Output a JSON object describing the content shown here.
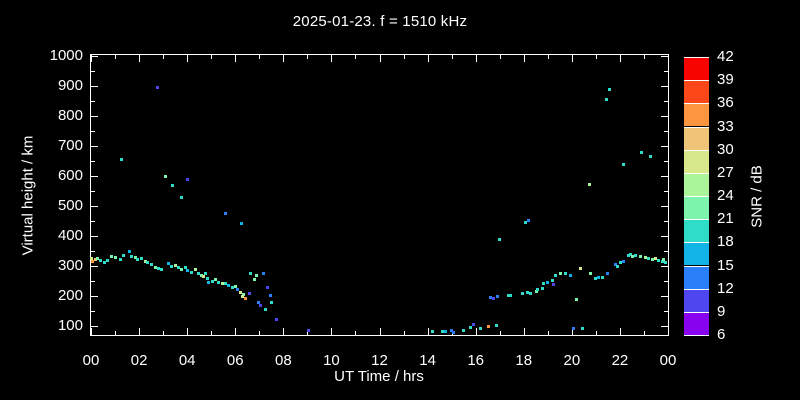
{
  "colors": {
    "background": "#000000",
    "frame": "#ffffff",
    "text": "#ffffff"
  },
  "chart_data": {
    "type": "scatter",
    "title": "2025-01-23. f = 1510 kHz",
    "xlabel": "UT Time / hrs",
    "ylabel": "Virtual height / km",
    "xlim": [
      0,
      24
    ],
    "ylim": [
      70,
      1003
    ],
    "grid": false,
    "x_major_ticks": [
      {
        "label": "00",
        "hour": 0
      },
      {
        "label": "02",
        "hour": 2
      },
      {
        "label": "04",
        "hour": 4
      },
      {
        "label": "06",
        "hour": 6
      },
      {
        "label": "08",
        "hour": 8
      },
      {
        "label": "10",
        "hour": 10
      },
      {
        "label": "12",
        "hour": 12
      },
      {
        "label": "14",
        "hour": 14
      },
      {
        "label": "16",
        "hour": 16
      },
      {
        "label": "18",
        "hour": 18
      },
      {
        "label": "20",
        "hour": 20
      },
      {
        "label": "22",
        "hour": 22
      },
      {
        "label": "00",
        "hour": 24
      }
    ],
    "x_minor_ticks": [
      1,
      3,
      5,
      7,
      9,
      11,
      13,
      15,
      17,
      19,
      21,
      23
    ],
    "y_major_ticks": [
      100,
      200,
      300,
      400,
      500,
      600,
      700,
      800,
      900,
      1000
    ],
    "y_minor_ticks": [
      150,
      250,
      350,
      450,
      550,
      650,
      750,
      850,
      950
    ],
    "colorbar": {
      "label": "SNR / dB",
      "min": 6,
      "max": 42,
      "step": 3,
      "tick_labels": [
        "42",
        "39",
        "36",
        "33",
        "30",
        "27",
        "24",
        "21",
        "18",
        "15",
        "12",
        "9",
        "6"
      ],
      "segment_colors_bottom_to_top": [
        "#8802f0",
        "#5046f0",
        "#2a7ef8",
        "#12b4e6",
        "#2edcc8",
        "#7cf4ac",
        "#aaf49a",
        "#d6e88a",
        "#f0c478",
        "#fc9440",
        "#fc4818",
        "#f80400"
      ]
    },
    "points_format": [
      "ut_hour",
      "virtual_height_km",
      "snr_db"
    ],
    "points": [
      [
        0.0,
        327,
        28
      ],
      [
        0.04,
        317,
        34
      ],
      [
        0.17,
        323,
        31
      ],
      [
        0.25,
        327,
        22
      ],
      [
        0.37,
        320,
        19
      ],
      [
        0.54,
        313,
        19
      ],
      [
        0.67,
        320,
        19
      ],
      [
        0.83,
        333,
        22
      ],
      [
        1.0,
        330,
        22
      ],
      [
        1.21,
        323,
        19
      ],
      [
        1.33,
        337,
        19
      ],
      [
        1.58,
        350,
        16
      ],
      [
        1.66,
        333,
        19
      ],
      [
        1.83,
        330,
        22
      ],
      [
        1.91,
        323,
        19
      ],
      [
        2.08,
        327,
        19
      ],
      [
        2.25,
        317,
        25
      ],
      [
        2.33,
        313,
        19
      ],
      [
        2.5,
        307,
        19
      ],
      [
        2.66,
        297,
        22
      ],
      [
        2.79,
        293,
        19
      ],
      [
        2.91,
        290,
        19
      ],
      [
        3.2,
        310,
        16
      ],
      [
        3.33,
        300,
        19
      ],
      [
        3.49,
        303,
        25
      ],
      [
        3.62,
        297,
        19
      ],
      [
        3.74,
        290,
        22
      ],
      [
        3.91,
        297,
        19
      ],
      [
        3.99,
        287,
        16
      ],
      [
        4.16,
        280,
        19
      ],
      [
        4.33,
        290,
        25
      ],
      [
        4.45,
        277,
        19
      ],
      [
        4.58,
        270,
        22
      ],
      [
        4.66,
        267,
        28
      ],
      [
        4.74,
        277,
        19
      ],
      [
        4.83,
        260,
        19
      ],
      [
        4.87,
        247,
        16
      ],
      [
        5.03,
        250,
        19
      ],
      [
        5.16,
        257,
        22
      ],
      [
        5.28,
        247,
        19
      ],
      [
        5.45,
        243,
        25
      ],
      [
        5.57,
        243,
        19
      ],
      [
        5.7,
        237,
        16
      ],
      [
        5.87,
        230,
        19
      ],
      [
        5.99,
        233,
        22
      ],
      [
        6.07,
        223,
        13
      ],
      [
        6.2,
        213,
        28
      ],
      [
        6.32,
        207,
        22
      ],
      [
        6.41,
        193,
        34
      ],
      [
        6.61,
        277,
        19
      ],
      [
        6.78,
        257,
        22
      ],
      [
        6.86,
        270,
        22
      ],
      [
        7.15,
        277,
        13
      ],
      [
        6.28,
        200,
        28
      ],
      [
        6.57,
        210,
        10
      ],
      [
        7.32,
        230,
        10
      ],
      [
        7.45,
        203,
        13
      ],
      [
        6.95,
        180,
        13
      ],
      [
        7.03,
        170,
        10
      ],
      [
        7.49,
        180,
        19
      ],
      [
        7.24,
        157,
        19
      ],
      [
        7.7,
        123,
        10
      ],
      [
        9.03,
        87,
        10
      ],
      [
        1.25,
        657,
        19
      ],
      [
        2.75,
        897,
        10
      ],
      [
        3.08,
        600,
        22
      ],
      [
        3.37,
        570,
        19
      ],
      [
        3.99,
        590,
        10
      ],
      [
        3.74,
        530,
        19
      ],
      [
        5.57,
        477,
        13
      ],
      [
        6.24,
        443,
        16
      ],
      [
        14.18,
        83,
        19
      ],
      [
        14.6,
        83,
        19
      ],
      [
        14.73,
        83,
        16
      ],
      [
        14.98,
        87,
        13
      ],
      [
        15.06,
        80,
        13
      ],
      [
        15.47,
        87,
        19
      ],
      [
        15.77,
        97,
        19
      ],
      [
        15.89,
        107,
        10
      ],
      [
        16.18,
        93,
        19
      ],
      [
        16.51,
        100,
        34
      ],
      [
        16.85,
        103,
        19
      ],
      [
        16.6,
        197,
        13
      ],
      [
        16.72,
        193,
        10
      ],
      [
        16.89,
        200,
        13
      ],
      [
        17.34,
        203,
        19
      ],
      [
        17.43,
        203,
        19
      ],
      [
        17.93,
        210,
        19
      ],
      [
        18.14,
        213,
        19
      ],
      [
        18.26,
        210,
        19
      ],
      [
        18.51,
        217,
        22
      ],
      [
        18.55,
        223,
        19
      ],
      [
        18.76,
        227,
        19
      ],
      [
        18.8,
        243,
        19
      ],
      [
        18.97,
        247,
        16
      ],
      [
        19.18,
        253,
        19
      ],
      [
        19.22,
        240,
        10
      ],
      [
        19.3,
        270,
        19
      ],
      [
        19.51,
        277,
        22
      ],
      [
        19.72,
        277,
        19
      ],
      [
        19.92,
        270,
        16
      ],
      [
        20.34,
        293,
        28
      ],
      [
        20.76,
        277,
        22
      ],
      [
        20.96,
        260,
        19
      ],
      [
        21.09,
        263,
        16
      ],
      [
        21.26,
        263,
        19
      ],
      [
        21.47,
        277,
        13
      ],
      [
        21.8,
        307,
        13
      ],
      [
        21.88,
        300,
        19
      ],
      [
        22.01,
        313,
        19
      ],
      [
        22.13,
        317,
        13
      ],
      [
        22.34,
        337,
        19
      ],
      [
        22.42,
        340,
        19
      ],
      [
        22.5,
        333,
        22
      ],
      [
        22.63,
        337,
        19
      ],
      [
        22.84,
        333,
        22
      ],
      [
        23.05,
        330,
        25
      ],
      [
        23.17,
        327,
        19
      ],
      [
        23.34,
        323,
        22
      ],
      [
        23.46,
        327,
        28
      ],
      [
        23.59,
        320,
        19
      ],
      [
        23.75,
        317,
        19
      ],
      [
        23.79,
        323,
        22
      ],
      [
        23.87,
        313,
        19
      ],
      [
        16.97,
        390,
        19
      ],
      [
        18.05,
        447,
        19
      ],
      [
        18.18,
        453,
        13
      ],
      [
        20.17,
        190,
        22
      ],
      [
        20.05,
        93,
        13
      ],
      [
        20.42,
        93,
        19
      ],
      [
        20.71,
        573,
        25
      ],
      [
        21.42,
        857,
        19
      ],
      [
        21.55,
        890,
        19
      ],
      [
        22.13,
        640,
        19
      ],
      [
        22.88,
        680,
        19
      ],
      [
        23.26,
        667,
        19
      ]
    ]
  }
}
